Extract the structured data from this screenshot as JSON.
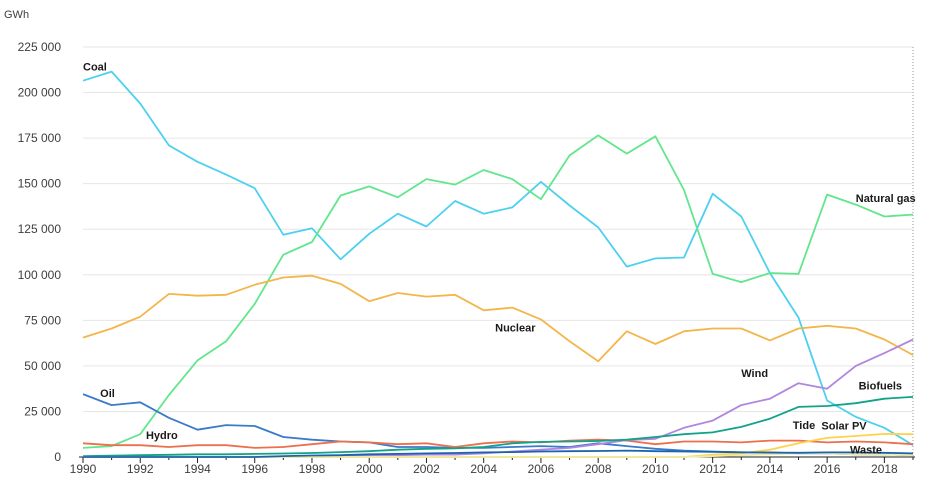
{
  "chart_data": {
    "type": "line",
    "unit_label": "GWh",
    "ylim": [
      0,
      225000
    ],
    "yticks": [
      0,
      25000,
      50000,
      75000,
      100000,
      125000,
      150000,
      175000,
      200000,
      225000
    ],
    "ytick_labels": [
      "0",
      "25 000",
      "50 000",
      "75 000",
      "100 000",
      "125 000",
      "150 000",
      "175 000",
      "200 000",
      "225 000"
    ],
    "xlim": [
      1990,
      2019
    ],
    "xticks": [
      1990,
      1992,
      1994,
      1996,
      1998,
      2000,
      2002,
      2004,
      2006,
      2008,
      2010,
      2012,
      2014,
      2016,
      2018
    ],
    "grid": true,
    "x": [
      1990,
      1991,
      1992,
      1993,
      1994,
      1995,
      1996,
      1997,
      1998,
      1999,
      2000,
      2001,
      2002,
      2003,
      2004,
      2005,
      2006,
      2007,
      2008,
      2009,
      2010,
      2011,
      2012,
      2013,
      2014,
      2015,
      2016,
      2017,
      2018,
      2019
    ],
    "series": [
      {
        "name": "Coal",
        "color": "#4dd0ef",
        "label_x": 1990,
        "label_y": 212000,
        "values": [
          206500,
          211500,
          194000,
          171000,
          162000,
          155000,
          147500,
          122000,
          125500,
          108500,
          122500,
          133500,
          126500,
          140500,
          133500,
          137000,
          151000,
          138000,
          126000,
          104500,
          109000,
          109500,
          144500,
          132000,
          101000,
          76500,
          31000,
          22000,
          16000,
          6500
        ]
      },
      {
        "name": "Natural gas",
        "color": "#62e68d",
        "label_x": 2017,
        "label_y": 140000,
        "values": [
          5000,
          6000,
          12500,
          34000,
          53000,
          63500,
          84000,
          111000,
          118000,
          143500,
          148500,
          142500,
          152500,
          149500,
          157500,
          152500,
          141500,
          165500,
          176500,
          166500,
          176000,
          146500,
          100500,
          96000,
          101000,
          100500,
          144000,
          138500,
          132000,
          133000
        ]
      },
      {
        "name": "Nuclear",
        "color": "#f4b54a",
        "label_x": 2004.4,
        "label_y": 69000,
        "values": [
          65500,
          70500,
          77000,
          89500,
          88500,
          89000,
          94500,
          98500,
          99500,
          95000,
          85500,
          90000,
          88000,
          89000,
          80500,
          82000,
          75500,
          63500,
          52500,
          69000,
          62000,
          69000,
          70500,
          70500,
          64000,
          70500,
          72000,
          70500,
          64500,
          56000
        ]
      },
      {
        "name": "Oil",
        "color": "#3a7ac9",
        "label_x": 1990.6,
        "label_y": 33000,
        "values": [
          34500,
          28500,
          30000,
          21500,
          15000,
          17500,
          17000,
          11000,
          9500,
          8500,
          8000,
          5500,
          5500,
          5000,
          5000,
          5500,
          6000,
          5500,
          7500,
          6000,
          4500,
          3500,
          3000,
          2500,
          2500,
          2000,
          2000,
          1500,
          1500,
          1000
        ]
      },
      {
        "name": "Hydro",
        "color": "#ec6f4e",
        "label_x": 1992.2,
        "label_y": 10000,
        "values": [
          7500,
          6500,
          6500,
          5500,
          6500,
          6500,
          5000,
          5500,
          7000,
          8500,
          8000,
          7000,
          7500,
          5500,
          7500,
          8500,
          8000,
          9000,
          9500,
          9000,
          7000,
          8500,
          8500,
          8000,
          9000,
          9000,
          8000,
          8500,
          8000,
          7000
        ]
      },
      {
        "name": "Wind",
        "color": "#b086e0",
        "label_x": 2013,
        "label_y": 44000,
        "values": [
          0,
          0,
          0,
          0,
          0,
          0,
          100,
          200,
          500,
          900,
          1000,
          1000,
          1300,
          1300,
          2000,
          3000,
          4000,
          5000,
          7000,
          9300,
          10000,
          16000,
          20000,
          28500,
          32000,
          40500,
          37500,
          50000,
          57000,
          64500
        ]
      },
      {
        "name": "Biofuels",
        "color": "#12a288",
        "label_x": 2017.1,
        "label_y": 37000,
        "values": [
          500,
          700,
          1000,
          1200,
          1500,
          1500,
          1700,
          1900,
          2200,
          2700,
          3200,
          4000,
          4500,
          4800,
          5500,
          7500,
          8300,
          8500,
          8800,
          9500,
          11000,
          12500,
          13500,
          16500,
          21000,
          27500,
          28000,
          29500,
          32000,
          33000
        ]
      },
      {
        "name": "Solar PV",
        "color": "#ffd24c",
        "label_x": 2015.8,
        "label_y": 15000,
        "values": [
          0,
          0,
          0,
          0,
          0,
          0,
          0,
          0,
          0,
          0,
          0,
          0,
          0,
          0,
          0,
          0,
          0,
          0,
          0,
          0,
          0,
          0,
          1300,
          2000,
          4000,
          7500,
          10500,
          11500,
          12700,
          12500
        ]
      },
      {
        "name": "Tide",
        "color": "#efeaa6",
        "label_x": 2014.8,
        "label_y": 15500,
        "values": [
          0,
          0,
          0,
          0,
          0,
          0,
          0,
          0,
          0,
          0,
          0,
          0,
          0,
          0,
          0,
          0,
          0,
          0,
          0,
          0,
          0,
          0,
          500,
          1000,
          1500,
          2000,
          2000,
          1500,
          1500,
          1000
        ]
      },
      {
        "name": "Waste",
        "color": "#1a63ad",
        "label_x": 2016.8,
        "label_y": 2000,
        "values": [
          0,
          0,
          0,
          0,
          0,
          0,
          0,
          500,
          800,
          1000,
          1500,
          1700,
          2000,
          2200,
          2500,
          2700,
          3000,
          3200,
          3300,
          3500,
          3200,
          3000,
          2800,
          2600,
          2400,
          2300,
          2500,
          2500,
          2300,
          2000
        ]
      }
    ]
  }
}
